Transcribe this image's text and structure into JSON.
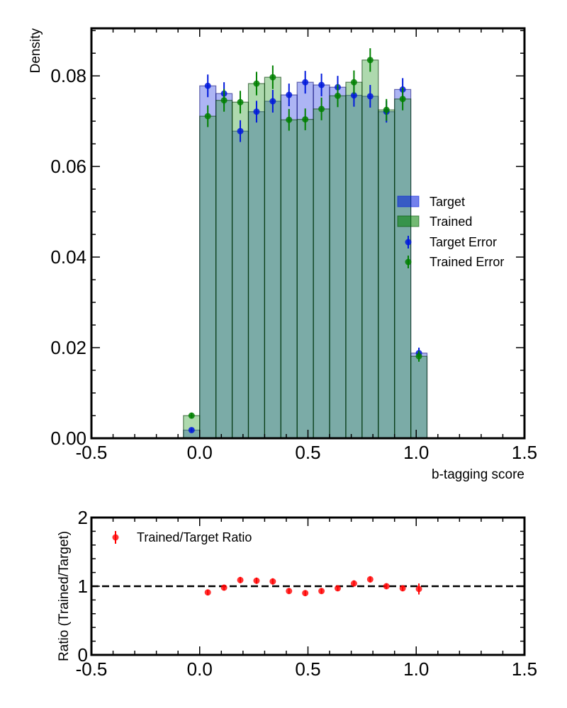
{
  "chart_data": [
    {
      "type": "histogram",
      "xlabel": "b-tagging score",
      "ylabel": "Density",
      "xlim": [
        -0.5,
        1.5
      ],
      "ylim": [
        0,
        0.0905
      ],
      "x_ticks": [
        "-0.5",
        "0.0",
        "0.5",
        "1.0",
        "1.5"
      ],
      "y_ticks": [
        "0.00",
        "0.02",
        "0.04",
        "0.06",
        "0.08"
      ],
      "bin_width": 0.075,
      "bin_centers": [
        -0.0375,
        0.0375,
        0.1125,
        0.1875,
        0.2625,
        0.3375,
        0.4125,
        0.4875,
        0.5625,
        0.6375,
        0.7125,
        0.7875,
        0.8625,
        0.9375,
        1.0125
      ],
      "series": [
        {
          "name": "Target",
          "color": "#0019dc",
          "values": [
            0.0018,
            0.0778,
            0.0761,
            0.0678,
            0.0721,
            0.0744,
            0.0758,
            0.0786,
            0.078,
            0.0775,
            0.0757,
            0.0755,
            0.0721,
            0.077,
            0.0188
          ]
        },
        {
          "name": "Trained",
          "color": "#008000",
          "values": [
            0.005,
            0.0711,
            0.0746,
            0.0742,
            0.0783,
            0.0797,
            0.0703,
            0.0704,
            0.0727,
            0.0756,
            0.0786,
            0.0835,
            0.0725,
            0.0749,
            0.0181
          ]
        }
      ],
      "errors": [
        {
          "name": "Target Error",
          "color": "#0019dc",
          "values": [
            0.0004,
            0.0025,
            0.0025,
            0.0024,
            0.0024,
            0.0025,
            0.0025,
            0.0025,
            0.0025,
            0.0025,
            0.0025,
            0.0025,
            0.0024,
            0.0025,
            0.0012
          ]
        },
        {
          "name": "Trained Error",
          "color": "#008000",
          "values": [
            0.0006,
            0.0024,
            0.0025,
            0.0025,
            0.0026,
            0.0026,
            0.0024,
            0.0024,
            0.0025,
            0.0025,
            0.0026,
            0.0026,
            0.0024,
            0.0025,
            0.0012
          ]
        }
      ],
      "legend": {
        "position": "right",
        "entries": [
          "Target",
          "Trained",
          "Target Error",
          "Trained Error"
        ]
      }
    },
    {
      "type": "scatter",
      "ylabel": "Ratio (Trained/Target)",
      "xlim": [
        -0.5,
        1.5
      ],
      "ylim": [
        0,
        2
      ],
      "x_ticks": [
        "-0.5",
        "0.0",
        "0.5",
        "1.0",
        "1.5"
      ],
      "y_ticks": [
        "0",
        "1",
        "2"
      ],
      "reference_line": 1,
      "series": [
        {
          "name": "Trained/Target Ratio",
          "color": "#ff0000",
          "x": [
            0.0375,
            0.1125,
            0.1875,
            0.2625,
            0.3375,
            0.4125,
            0.4875,
            0.5625,
            0.6375,
            0.7125,
            0.7875,
            0.8625,
            0.9375,
            1.0125
          ],
          "y": [
            0.91,
            0.98,
            1.09,
            1.08,
            1.07,
            0.93,
            0.9,
            0.93,
            0.97,
            1.04,
            1.1,
            1.0,
            0.97,
            0.96
          ],
          "yerr": [
            0.04,
            0.04,
            0.045,
            0.045,
            0.045,
            0.04,
            0.04,
            0.04,
            0.04,
            0.045,
            0.045,
            0.04,
            0.04,
            0.08
          ]
        }
      ],
      "legend": {
        "position": "top-left",
        "entries": [
          "Trained/Target Ratio"
        ]
      }
    }
  ]
}
